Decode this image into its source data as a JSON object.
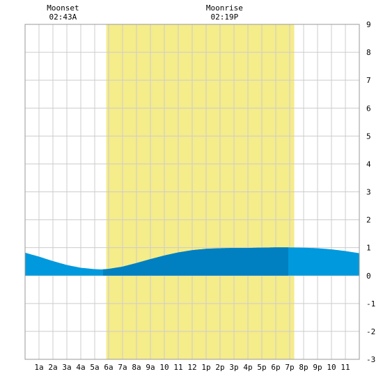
{
  "chart_data": {
    "type": "area",
    "x_unit": "hour of day",
    "xlim": [
      0,
      24
    ],
    "ylim": [
      -3,
      9
    ],
    "grid": true,
    "x_tick_labels": [
      "1a",
      "2a",
      "3a",
      "4a",
      "5a",
      "6a",
      "7a",
      "8a",
      "9a",
      "10",
      "11",
      "12",
      "1p",
      "2p",
      "3p",
      "4p",
      "5p",
      "6p",
      "7p",
      "8p",
      "9p",
      "10",
      "11"
    ],
    "y_tick_labels": [
      "-3",
      "-2",
      "-1",
      "0",
      "1",
      "2",
      "3",
      "4",
      "5",
      "6",
      "7",
      "8",
      "9"
    ],
    "daylight": {
      "start": 5.83,
      "end": 19.33,
      "color": "#f5ec8a"
    },
    "annotations": [
      {
        "label": "Moonset",
        "time": "02:43A",
        "x": 2.72
      },
      {
        "label": "Moonrise",
        "time": "02:19P",
        "x": 14.32
      }
    ],
    "tide": {
      "x": [
        0,
        1,
        2,
        3,
        4,
        5,
        5.5,
        6,
        7,
        8,
        9,
        10,
        11,
        12,
        13,
        14,
        15,
        16,
        17,
        18,
        18.92,
        20,
        21,
        22,
        23,
        24
      ],
      "y": [
        0.82,
        0.68,
        0.52,
        0.38,
        0.28,
        0.23,
        0.22,
        0.24,
        0.32,
        0.45,
        0.59,
        0.72,
        0.83,
        0.91,
        0.96,
        0.98,
        0.99,
        0.99,
        1.0,
        1.01,
        1.01,
        1.0,
        0.98,
        0.94,
        0.88,
        0.8
      ],
      "highlight_range": [
        5.6,
        18.9
      ],
      "color": "#0099dd",
      "highlight_color": "#0080c0"
    }
  }
}
